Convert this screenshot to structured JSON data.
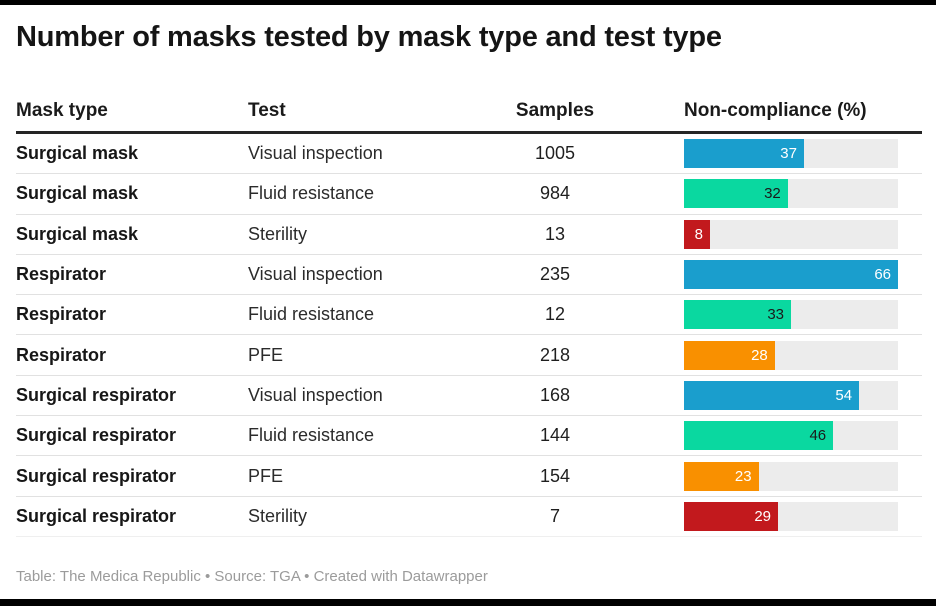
{
  "title": "Number of masks tested by mask type and test type",
  "columns": {
    "mask_type": "Mask type",
    "test": "Test",
    "samples": "Samples",
    "non_compliance": "Non-compliance (%)"
  },
  "footer": "Table: The Medica Republic • Source: TGA • Created with Datawrapper",
  "colors": {
    "visual_inspection_blue": "#1a9ecd",
    "fluid_resistance_green": "#0ad8a0",
    "pfe_orange": "#f99000",
    "sterility_red": "#c2191d",
    "bar_track_gray": "#ececec",
    "header_rule": "#252525",
    "footer_text": "#9b9b9b"
  },
  "rows": [
    {
      "mask_type": "Surgical mask",
      "test": "Visual inspection",
      "samples": "1005",
      "value": 37,
      "bar_color": "#1a9ecd",
      "label_color": "#ffffff"
    },
    {
      "mask_type": "Surgical mask",
      "test": "Fluid resistance",
      "samples": "984",
      "value": 32,
      "bar_color": "#0ad8a0",
      "label_color": "#1a1a1a"
    },
    {
      "mask_type": "Surgical mask",
      "test": "Sterility",
      "samples": "13",
      "value": 8,
      "bar_color": "#c2191d",
      "label_color": "#ffffff"
    },
    {
      "mask_type": "Respirator",
      "test": "Visual inspection",
      "samples": "235",
      "value": 66,
      "bar_color": "#1a9ecd",
      "label_color": "#ffffff"
    },
    {
      "mask_type": "Respirator",
      "test": "Fluid resistance",
      "samples": "12",
      "value": 33,
      "bar_color": "#0ad8a0",
      "label_color": "#1a1a1a"
    },
    {
      "mask_type": "Respirator",
      "test": "PFE",
      "samples": "218",
      "value": 28,
      "bar_color": "#f99000",
      "label_color": "#ffffff"
    },
    {
      "mask_type": "Surgical respirator",
      "test": "Visual inspection",
      "samples": "168",
      "value": 54,
      "bar_color": "#1a9ecd",
      "label_color": "#ffffff"
    },
    {
      "mask_type": "Surgical respirator",
      "test": "Fluid resistance",
      "samples": "144",
      "value": 46,
      "bar_color": "#0ad8a0",
      "label_color": "#1a1a1a"
    },
    {
      "mask_type": "Surgical respirator",
      "test": "PFE",
      "samples": "154",
      "value": 23,
      "bar_color": "#f99000",
      "label_color": "#ffffff"
    },
    {
      "mask_type": "Surgical respirator",
      "test": "Sterility",
      "samples": "7",
      "value": 29,
      "bar_color": "#c2191d",
      "label_color": "#ffffff"
    }
  ],
  "chart_data": {
    "type": "table",
    "title": "Number of masks tested by mask type and test type",
    "columns": [
      "Mask type",
      "Test",
      "Samples",
      "Non-compliance (%)"
    ],
    "bar_column": "Non-compliance (%)",
    "bar_axis_range": [
      0,
      66
    ],
    "rows": [
      [
        "Surgical mask",
        "Visual inspection",
        1005,
        37
      ],
      [
        "Surgical mask",
        "Fluid resistance",
        984,
        32
      ],
      [
        "Surgical mask",
        "Sterility",
        13,
        8
      ],
      [
        "Respirator",
        "Visual inspection",
        235,
        66
      ],
      [
        "Respirator",
        "Fluid resistance",
        12,
        33
      ],
      [
        "Respirator",
        "PFE",
        218,
        28
      ],
      [
        "Surgical respirator",
        "Visual inspection",
        168,
        54
      ],
      [
        "Surgical respirator",
        "Fluid resistance",
        144,
        46
      ],
      [
        "Surgical respirator",
        "PFE",
        154,
        23
      ],
      [
        "Surgical respirator",
        "Sterility",
        7,
        29
      ]
    ],
    "legend_position": "none",
    "grid": "off",
    "footer": "Table: The Medica Republic • Source: TGA • Created with Datawrapper"
  }
}
